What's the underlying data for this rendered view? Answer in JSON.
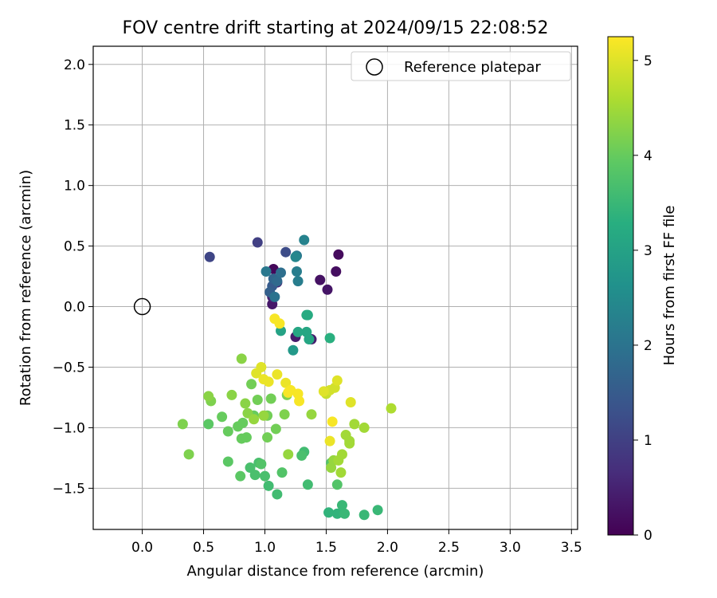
{
  "chart_data": {
    "type": "scatter",
    "title": "FOV centre drift starting at 2024/09/15 22:08:52",
    "xlabel": "Angular distance from reference (arcmin)",
    "ylabel": "Rotation from reference (arcmin)",
    "xlim": [
      -0.4,
      3.55
    ],
    "ylim": [
      -1.84,
      2.15
    ],
    "xticks": [
      "0.0",
      "0.5",
      "1.0",
      "1.5",
      "2.0",
      "2.5",
      "3.0",
      "3.5"
    ],
    "xtick_values": [
      0.0,
      0.5,
      1.0,
      1.5,
      2.0,
      2.5,
      3.0,
      3.5
    ],
    "yticks": [
      "−1.5",
      "−1.0",
      "−0.5",
      "0.0",
      "0.5",
      "1.0",
      "1.5",
      "2.0"
    ],
    "ytick_values": [
      -1.5,
      -1.0,
      -0.5,
      0.0,
      0.5,
      1.0,
      1.5,
      2.0
    ],
    "grid": true,
    "legend": {
      "position": "top-right",
      "entries": [
        "Reference platepar"
      ]
    },
    "colorbar": {
      "label": "Hours from first FF file",
      "range": [
        0,
        5.25
      ],
      "ticks": [
        "0",
        "1",
        "2",
        "3",
        "4",
        "5"
      ],
      "tick_values": [
        0,
        1,
        2,
        3,
        4,
        5
      ],
      "colormap": "viridis"
    },
    "reference_point": {
      "x": 0.0,
      "y": 0.0,
      "marker": "open-circle",
      "color": "#000000"
    },
    "points": [
      [
        1.07,
        0.31,
        0.1
      ],
      [
        1.6,
        0.43,
        0.15
      ],
      [
        1.58,
        0.29,
        0.2
      ],
      [
        1.45,
        0.22,
        0.25
      ],
      [
        1.51,
        0.14,
        0.3
      ],
      [
        1.06,
        0.02,
        0.35
      ],
      [
        1.25,
        -0.25,
        0.4
      ],
      [
        1.38,
        -0.27,
        0.45
      ],
      [
        1.06,
        0.08,
        0.5
      ],
      [
        1.1,
        0.2,
        0.55
      ],
      [
        0.94,
        0.53,
        1.0
      ],
      [
        0.55,
        0.41,
        1.1
      ],
      [
        1.17,
        0.45,
        1.2
      ],
      [
        1.06,
        0.17,
        1.5
      ],
      [
        1.04,
        0.12,
        1.6
      ],
      [
        1.07,
        0.23,
        1.7
      ],
      [
        1.1,
        0.21,
        1.8
      ],
      [
        1.13,
        0.28,
        1.9
      ],
      [
        1.01,
        0.29,
        2.1
      ],
      [
        1.08,
        0.08,
        2.0
      ],
      [
        1.26,
        0.42,
        2.1
      ],
      [
        1.26,
        0.29,
        2.2
      ],
      [
        1.27,
        0.21,
        2.2
      ],
      [
        1.32,
        0.55,
        2.3
      ],
      [
        1.25,
        0.41,
        2.4
      ],
      [
        1.23,
        -0.36,
        2.8
      ],
      [
        1.13,
        -0.2,
        3.0
      ],
      [
        1.27,
        -0.21,
        3.1
      ],
      [
        1.34,
        -0.21,
        3.1
      ],
      [
        1.34,
        -0.07,
        3.2
      ],
      [
        1.35,
        -0.07,
        3.2
      ],
      [
        1.36,
        -0.27,
        3.1
      ],
      [
        1.53,
        -0.26,
        3.3
      ],
      [
        1.52,
        -1.7,
        3.4
      ],
      [
        1.59,
        -1.71,
        3.4
      ],
      [
        1.63,
        -1.64,
        3.5
      ],
      [
        1.65,
        -1.71,
        3.5
      ],
      [
        1.81,
        -1.72,
        3.5
      ],
      [
        1.92,
        -1.68,
        3.5
      ],
      [
        1.35,
        -1.47,
        3.6
      ],
      [
        1.03,
        -1.48,
        3.6
      ],
      [
        1.1,
        -1.55,
        3.6
      ],
      [
        1.32,
        -1.2,
        3.6
      ],
      [
        1.0,
        -1.4,
        3.7
      ],
      [
        0.92,
        -1.39,
        3.7
      ],
      [
        0.88,
        -1.33,
        3.7
      ],
      [
        0.95,
        -1.29,
        3.7
      ],
      [
        0.97,
        -1.3,
        3.8
      ],
      [
        1.14,
        -1.37,
        3.8
      ],
      [
        1.3,
        -1.23,
        3.7
      ],
      [
        1.59,
        -1.47,
        3.8
      ],
      [
        1.54,
        -1.29,
        3.8
      ],
      [
        0.8,
        -1.4,
        3.9
      ],
      [
        0.7,
        -1.28,
        3.9
      ],
      [
        0.54,
        -0.97,
        3.9
      ],
      [
        0.81,
        -1.09,
        4.0
      ],
      [
        0.85,
        -1.08,
        4.0
      ],
      [
        0.7,
        -1.03,
        4.0
      ],
      [
        0.65,
        -0.91,
        4.0
      ],
      [
        0.78,
        -0.99,
        4.0
      ],
      [
        0.82,
        -0.96,
        4.0
      ],
      [
        0.91,
        -0.9,
        4.0
      ],
      [
        0.94,
        -0.77,
        4.1
      ],
      [
        0.89,
        -0.64,
        4.1
      ],
      [
        1.02,
        -0.9,
        4.1
      ],
      [
        1.05,
        -0.76,
        4.1
      ],
      [
        1.02,
        -1.08,
        4.1
      ],
      [
        1.09,
        -1.01,
        4.1
      ],
      [
        1.16,
        -0.89,
        4.2
      ],
      [
        1.18,
        -0.73,
        4.2
      ],
      [
        0.33,
        -0.97,
        4.2
      ],
      [
        0.38,
        -1.22,
        4.2
      ],
      [
        0.56,
        -0.78,
        4.2
      ],
      [
        0.54,
        -0.74,
        4.3
      ],
      [
        0.73,
        -0.73,
        4.3
      ],
      [
        0.84,
        -0.8,
        4.3
      ],
      [
        0.81,
        -0.43,
        4.3
      ],
      [
        0.86,
        -0.88,
        4.3
      ],
      [
        0.91,
        -0.93,
        4.4
      ],
      [
        0.99,
        -0.9,
        4.4
      ],
      [
        1.19,
        -1.22,
        4.4
      ],
      [
        1.38,
        -0.89,
        4.4
      ],
      [
        1.54,
        -1.33,
        4.4
      ],
      [
        1.56,
        -1.27,
        4.4
      ],
      [
        1.6,
        -1.27,
        4.5
      ],
      [
        1.63,
        -1.22,
        4.5
      ],
      [
        1.66,
        -1.06,
        4.5
      ],
      [
        1.69,
        -1.11,
        4.5
      ],
      [
        1.69,
        -1.13,
        4.5
      ],
      [
        1.73,
        -0.97,
        4.5
      ],
      [
        1.81,
        -1.0,
        4.5
      ],
      [
        1.62,
        -1.37,
        4.5
      ],
      [
        2.03,
        -0.84,
        4.6
      ],
      [
        1.5,
        -0.72,
        4.8
      ],
      [
        1.53,
        -0.69,
        4.9
      ],
      [
        1.57,
        -0.67,
        4.9
      ],
      [
        1.59,
        -0.61,
        5.0
      ],
      [
        1.7,
        -0.79,
        5.0
      ],
      [
        1.53,
        -1.11,
        5.1
      ],
      [
        1.55,
        -0.95,
        5.2
      ],
      [
        0.97,
        -0.5,
        5.0
      ],
      [
        0.93,
        -0.55,
        5.0
      ],
      [
        0.99,
        -0.6,
        5.1
      ],
      [
        1.03,
        -0.62,
        5.1
      ],
      [
        1.1,
        -0.56,
        5.1
      ],
      [
        1.17,
        -0.63,
        5.1
      ],
      [
        1.19,
        -0.71,
        5.2
      ],
      [
        1.21,
        -0.69,
        5.2
      ],
      [
        1.27,
        -0.72,
        5.2
      ],
      [
        1.28,
        -0.78,
        5.2
      ],
      [
        1.08,
        -0.1,
        5.2
      ],
      [
        1.12,
        -0.14,
        5.2
      ],
      [
        1.48,
        -0.7,
        5.0
      ]
    ]
  }
}
